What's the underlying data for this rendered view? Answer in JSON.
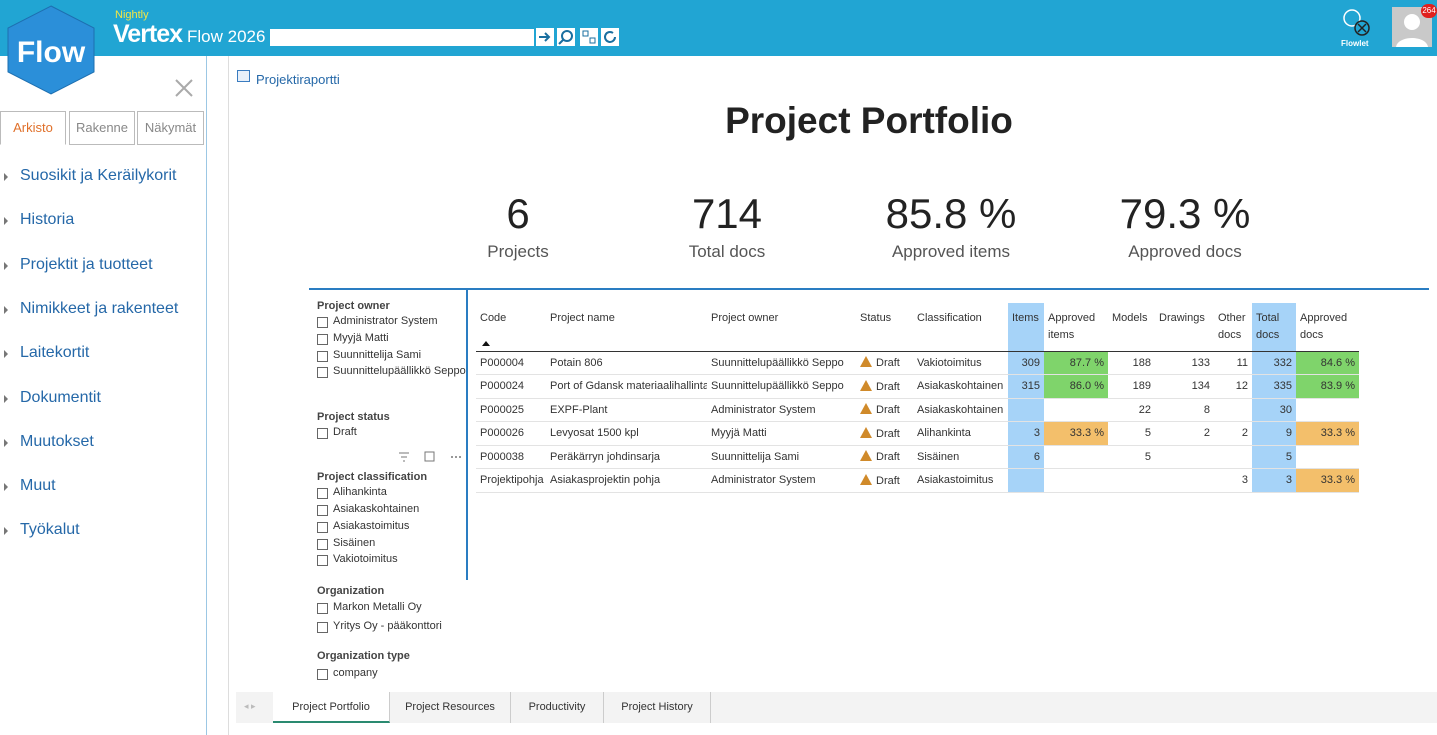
{
  "header": {
    "logo": "Flow",
    "edition": "Nightly",
    "brand": "Vertex",
    "product": "Flow 2026",
    "flowlet": "Flowlet",
    "badge": "264"
  },
  "sidebar": {
    "tabs": [
      "Arkisto",
      "Rakenne",
      "Näkymät"
    ],
    "items": [
      "Suosikit ja Keräilykorit",
      "Historia",
      "Projektit ja tuotteet",
      "Nimikkeet ja rakenteet",
      "Laitekortit",
      "Dokumentit",
      "Muutokset",
      "Muut",
      "Työkalut"
    ]
  },
  "report": {
    "breadcrumb": "Projektiraportti",
    "title": "Project Portfolio",
    "kpis": [
      {
        "value": "6",
        "label": "Projects"
      },
      {
        "value": "714",
        "label": "Total docs"
      },
      {
        "value": "85.8 %",
        "label": "Approved items"
      },
      {
        "value": "79.3 %",
        "label": "Approved docs"
      }
    ],
    "filters": [
      {
        "title": "Project owner",
        "options": [
          "Administrator System",
          "Myyjä Matti",
          "Suunnittelija Sami",
          "Suunnittelupäällikkö Seppo"
        ]
      },
      {
        "title": "Project status",
        "options": [
          "Draft"
        ]
      },
      {
        "title": "Project classification",
        "options": [
          "Alihankinta",
          "Asiakaskohtainen",
          "Asiakastoimitus",
          "Sisäinen",
          "Vakiotoimitus"
        ]
      },
      {
        "title": "Organization",
        "options": [
          "Markon Metalli Oy",
          "Yritys Oy - pääkonttori"
        ]
      },
      {
        "title": "Organization type",
        "options": [
          "company"
        ]
      }
    ],
    "table": {
      "columns": [
        "Code",
        "Project name",
        "Project owner",
        "Status",
        "Classification",
        "Items",
        "Approved items",
        "Models",
        "Drawings",
        "Other docs",
        "Total docs",
        "Approved docs"
      ],
      "rows": [
        [
          "P000004",
          "Potain 806",
          "Suunnittelupäällikkö Seppo",
          "Draft",
          "Vakiotoimitus",
          309,
          "87.7 %",
          188,
          133,
          11,
          332,
          "84.6 %"
        ],
        [
          "P000024",
          "Port of Gdansk materiaalihallinta",
          "Suunnittelupäällikkö Seppo",
          "Draft",
          "Asiakaskohtainen",
          315,
          "86.0 %",
          189,
          134,
          12,
          335,
          "83.9 %"
        ],
        [
          "P000025",
          "EXPF-Plant",
          "Administrator System",
          "Draft",
          "Asiakaskohtainen",
          null,
          null,
          22,
          8,
          null,
          30,
          null
        ],
        [
          "P000026",
          "Levyosat 1500 kpl",
          "Myyjä Matti",
          "Draft",
          "Alihankinta",
          3,
          "33.3 %",
          5,
          2,
          2,
          9,
          "33.3 %"
        ],
        [
          "P000038",
          "Peräkärryn johdinsarja",
          "Suunnittelija Sami",
          "Draft",
          "Sisäinen",
          6,
          null,
          5,
          null,
          null,
          5,
          null
        ],
        [
          "Projektipohja",
          "Asiakasprojektin pohja",
          "Administrator System",
          "Draft",
          "Asiakastoimitus",
          null,
          null,
          null,
          null,
          3,
          3,
          "33.3 %"
        ]
      ]
    },
    "tabs": [
      "Project Portfolio",
      "Project Resources",
      "Productivity",
      "Project History"
    ]
  }
}
